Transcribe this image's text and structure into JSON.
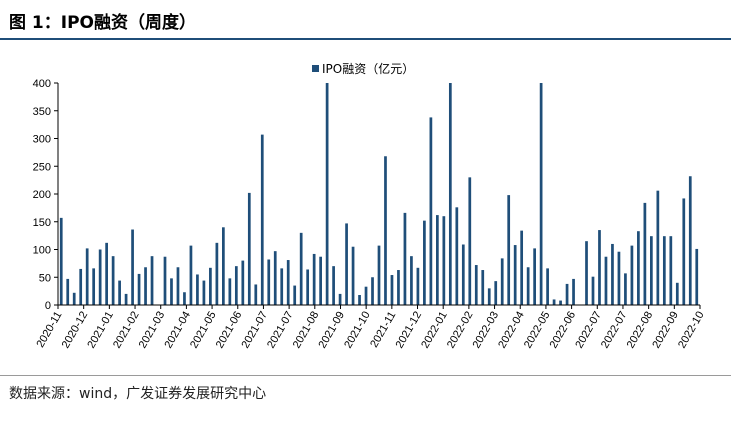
{
  "figure": {
    "title": "图 1：IPO融资（周度）",
    "source": "数据来源：wind，广发证券发展研究中心"
  },
  "chart_data": {
    "type": "bar",
    "series": [
      {
        "name": "IPO融资（亿元）",
        "color": "#1f4e79",
        "values": [
          157,
          47,
          22,
          65,
          102,
          66,
          100,
          112,
          88,
          44,
          20,
          136,
          56,
          68,
          88,
          0,
          87,
          48,
          68,
          23,
          107,
          55,
          44,
          67,
          112,
          140,
          48,
          70,
          80,
          202,
          37,
          307,
          82,
          97,
          66,
          81,
          35,
          130,
          64,
          92,
          87,
          400,
          70,
          20,
          147,
          105,
          18,
          33,
          50,
          107,
          268,
          54,
          63,
          166,
          88,
          67,
          152,
          338,
          162,
          160,
          400,
          176,
          109,
          230,
          72,
          63,
          30,
          43,
          84,
          198,
          108,
          134,
          68,
          102,
          400,
          66,
          10,
          8,
          38,
          47,
          0,
          115,
          51,
          135,
          87,
          110,
          96,
          57,
          107,
          133,
          184,
          124,
          206,
          124,
          124,
          40,
          192,
          232,
          101
        ]
      }
    ],
    "x_tick_labels": [
      "2020-11",
      "2020-12",
      "2021-01",
      "2021-02",
      "2021-03",
      "2021-04",
      "2021-05",
      "2021-06",
      "2021-07",
      "2021-07",
      "2021-08",
      "2021-09",
      "2021-10",
      "2021-11",
      "2021-12",
      "2022-01",
      "2022-02",
      "2022-03",
      "2022-04",
      "2022-05",
      "2022-06",
      "2022-07",
      "2022-07",
      "2022-08",
      "2022-09",
      "2022-10"
    ],
    "ylim": [
      0,
      400
    ],
    "y_ticks": [
      0,
      50,
      100,
      150,
      200,
      250,
      300,
      350,
      400
    ],
    "grid": false,
    "legend_position": "top-center"
  }
}
